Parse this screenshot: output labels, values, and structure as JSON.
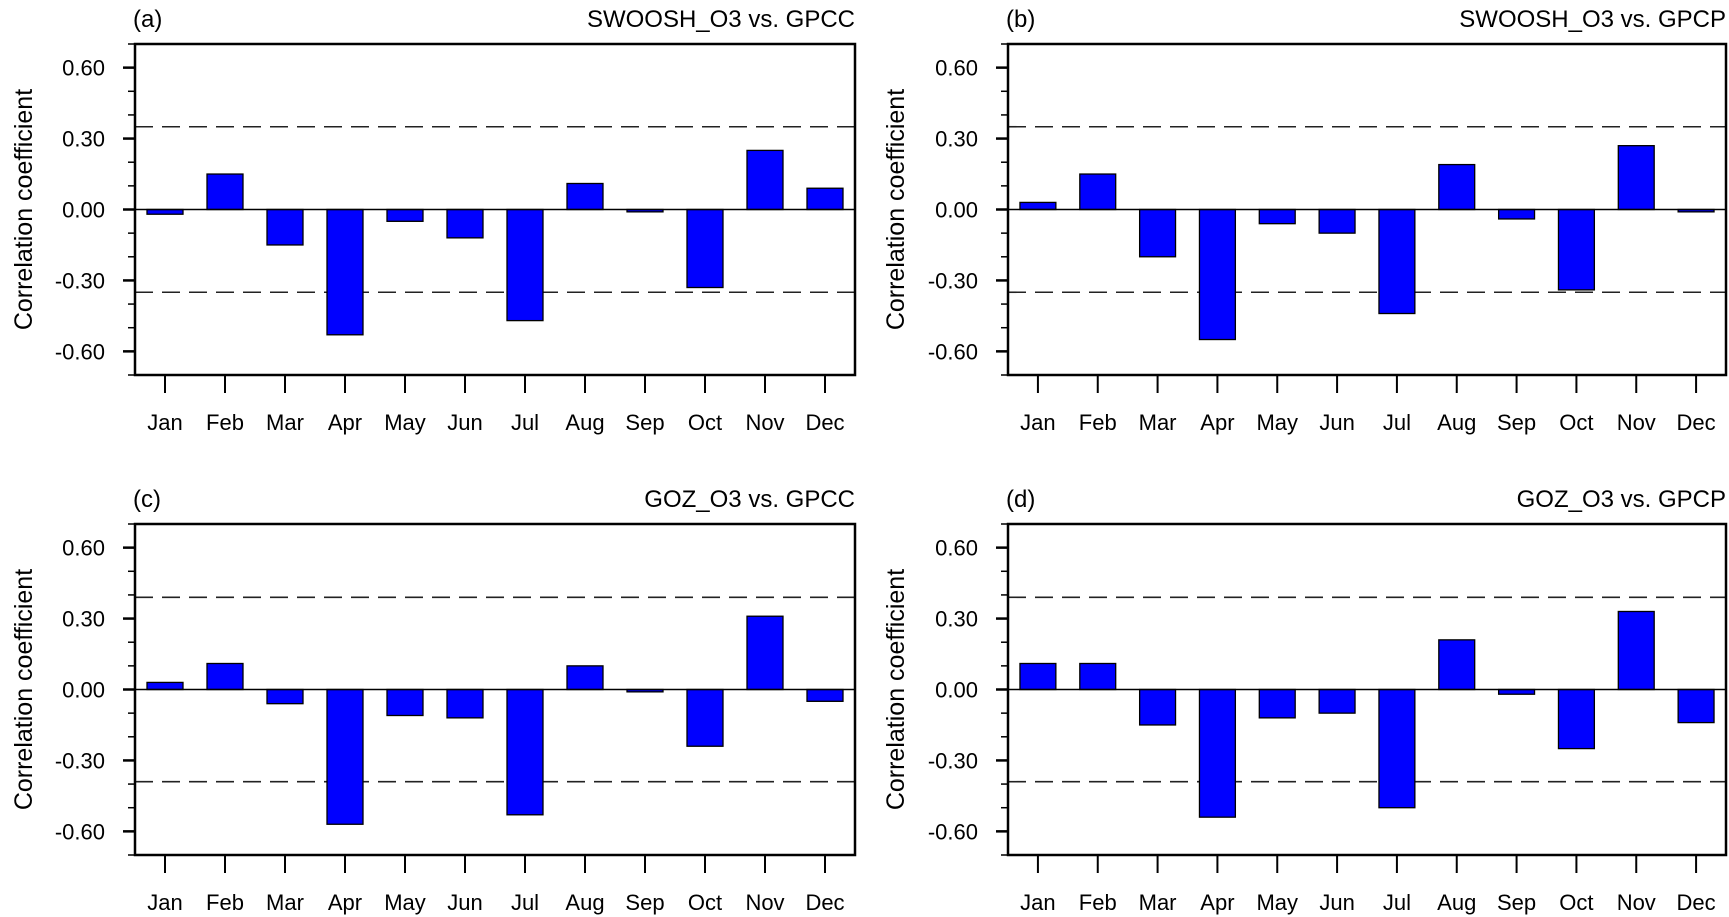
{
  "chart_data": [
    {
      "type": "bar",
      "panel_label": "(a)",
      "title": "SWOOSH_O3 vs. GPCC",
      "ylabel": "Correlation coefficient",
      "categories": [
        "Jan",
        "Feb",
        "Mar",
        "Apr",
        "May",
        "Jun",
        "Jul",
        "Aug",
        "Sep",
        "Oct",
        "Nov",
        "Dec"
      ],
      "values": [
        -0.02,
        0.15,
        -0.15,
        -0.53,
        -0.05,
        -0.12,
        -0.47,
        0.11,
        -0.01,
        -0.33,
        0.25,
        0.09
      ],
      "ylim": [
        -0.7,
        0.7
      ],
      "yticks": [
        "0.60",
        "0.30",
        "0.00",
        "-0.30",
        "-0.60"
      ],
      "significance_lines": [
        0.35,
        -0.35
      ]
    },
    {
      "type": "bar",
      "panel_label": "(b)",
      "title": "SWOOSH_O3 vs. GPCP",
      "ylabel": "Correlation coefficient",
      "categories": [
        "Jan",
        "Feb",
        "Mar",
        "Apr",
        "May",
        "Jun",
        "Jul",
        "Aug",
        "Sep",
        "Oct",
        "Nov",
        "Dec"
      ],
      "values": [
        0.03,
        0.15,
        -0.2,
        -0.55,
        -0.06,
        -0.1,
        -0.44,
        0.19,
        -0.04,
        -0.34,
        0.27,
        -0.01
      ],
      "ylim": [
        -0.7,
        0.7
      ],
      "yticks": [
        "0.60",
        "0.30",
        "0.00",
        "-0.30",
        "-0.60"
      ],
      "significance_lines": [
        0.35,
        -0.35
      ]
    },
    {
      "type": "bar",
      "panel_label": "(c)",
      "title": "GOZ_O3 vs. GPCC",
      "ylabel": "Correlation coefficient",
      "categories": [
        "Jan",
        "Feb",
        "Mar",
        "Apr",
        "May",
        "Jun",
        "Jul",
        "Aug",
        "Sep",
        "Oct",
        "Nov",
        "Dec"
      ],
      "values": [
        0.03,
        0.11,
        -0.06,
        -0.57,
        -0.11,
        -0.12,
        -0.53,
        0.1,
        -0.01,
        -0.24,
        0.31,
        -0.05
      ],
      "ylim": [
        -0.7,
        0.7
      ],
      "yticks": [
        "0.60",
        "0.30",
        "0.00",
        "-0.30",
        "-0.60"
      ],
      "significance_lines": [
        0.39,
        -0.39
      ]
    },
    {
      "type": "bar",
      "panel_label": "(d)",
      "title": "GOZ_O3 vs. GPCP",
      "ylabel": "Correlation coefficient",
      "categories": [
        "Jan",
        "Feb",
        "Mar",
        "Apr",
        "May",
        "Jun",
        "Jul",
        "Aug",
        "Sep",
        "Oct",
        "Nov",
        "Dec"
      ],
      "values": [
        0.11,
        0.11,
        -0.15,
        -0.54,
        -0.12,
        -0.1,
        -0.5,
        0.21,
        -0.02,
        -0.25,
        0.33,
        -0.14
      ],
      "ylim": [
        -0.7,
        0.7
      ],
      "yticks": [
        "0.60",
        "0.30",
        "0.00",
        "-0.30",
        "-0.60"
      ],
      "significance_lines": [
        0.39,
        -0.39
      ]
    }
  ],
  "colors": {
    "bar_fill": "#0000ff",
    "bar_edge": "#000000",
    "axis": "#000000"
  }
}
